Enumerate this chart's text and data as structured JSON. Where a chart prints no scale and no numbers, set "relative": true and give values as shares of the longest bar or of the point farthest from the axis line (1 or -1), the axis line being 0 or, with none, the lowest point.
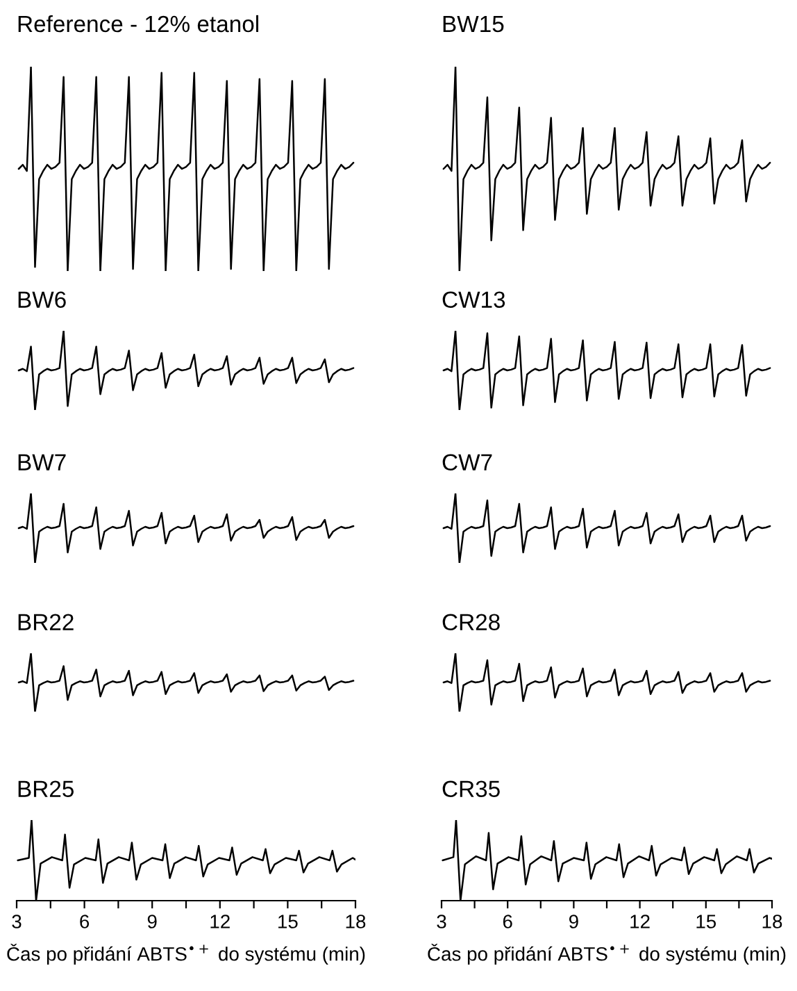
{
  "chart_data": [
    {
      "type": "line",
      "title": "Reference - 12% etanol",
      "color": "#000000",
      "relative": true,
      "tick_labels": false,
      "categories": [
        null,
        null,
        null,
        null,
        null,
        null,
        null,
        null,
        null,
        null,
        null,
        null,
        null,
        null,
        null,
        null,
        null,
        null,
        null,
        null,
        null,
        null,
        null,
        null,
        null,
        null,
        null,
        null,
        null,
        null,
        null,
        null,
        null,
        null,
        null,
        null,
        null,
        null,
        null,
        null,
        null,
        null,
        null,
        null,
        null,
        null,
        null,
        null,
        null,
        null,
        null,
        null,
        null,
        null,
        null,
        null,
        null,
        null,
        null,
        null,
        null,
        null,
        null,
        null,
        null,
        null,
        null,
        null,
        null,
        null,
        null,
        null,
        null,
        null,
        null,
        null,
        null,
        null,
        null,
        null,
        null,
        null,
        null
      ],
      "values": [
        0.5,
        0.52,
        0.49,
        1.0,
        0.02,
        0.45,
        0.49,
        0.52,
        0.5,
        0.51,
        0.53,
        0.95,
        0.0,
        0.45,
        0.49,
        0.52,
        0.5,
        0.51,
        0.53,
        0.95,
        0.0,
        0.45,
        0.49,
        0.52,
        0.5,
        0.51,
        0.53,
        0.95,
        0.01,
        0.45,
        0.49,
        0.52,
        0.5,
        0.51,
        0.53,
        0.97,
        0.0,
        0.45,
        0.49,
        0.52,
        0.5,
        0.51,
        0.53,
        0.97,
        0.0,
        0.45,
        0.49,
        0.52,
        0.5,
        0.51,
        0.53,
        0.93,
        0.01,
        0.45,
        0.49,
        0.52,
        0.5,
        0.51,
        0.53,
        0.94,
        0.0,
        0.45,
        0.49,
        0.52,
        0.5,
        0.51,
        0.53,
        0.93,
        0.0,
        0.45,
        0.49,
        0.52,
        0.5,
        0.51,
        0.53,
        0.94,
        0.01,
        0.45,
        0.49,
        0.52,
        0.5,
        0.51,
        0.53
      ]
    },
    {
      "type": "line",
      "title": "BW15",
      "color": "#000000",
      "relative": true,
      "tick_labels": false,
      "categories": [
        null,
        null,
        null,
        null,
        null,
        null,
        null,
        null,
        null,
        null,
        null,
        null,
        null,
        null,
        null,
        null,
        null,
        null,
        null,
        null,
        null,
        null,
        null,
        null,
        null,
        null,
        null,
        null,
        null,
        null,
        null,
        null,
        null,
        null,
        null,
        null,
        null,
        null,
        null,
        null,
        null,
        null,
        null,
        null,
        null,
        null,
        null,
        null,
        null,
        null,
        null,
        null,
        null,
        null,
        null,
        null,
        null,
        null,
        null,
        null,
        null,
        null,
        null,
        null,
        null,
        null,
        null,
        null,
        null,
        null,
        null,
        null,
        null,
        null,
        null,
        null,
        null,
        null,
        null,
        null,
        null,
        null,
        null
      ],
      "values": [
        0.5,
        0.52,
        0.49,
        1.0,
        0.0,
        0.45,
        0.49,
        0.52,
        0.5,
        0.51,
        0.53,
        0.85,
        0.15,
        0.45,
        0.49,
        0.52,
        0.5,
        0.51,
        0.53,
        0.8,
        0.2,
        0.45,
        0.49,
        0.52,
        0.5,
        0.51,
        0.53,
        0.75,
        0.25,
        0.45,
        0.49,
        0.52,
        0.5,
        0.51,
        0.53,
        0.7,
        0.28,
        0.45,
        0.49,
        0.52,
        0.5,
        0.51,
        0.53,
        0.7,
        0.3,
        0.45,
        0.49,
        0.52,
        0.5,
        0.51,
        0.53,
        0.68,
        0.32,
        0.45,
        0.49,
        0.52,
        0.5,
        0.51,
        0.53,
        0.66,
        0.32,
        0.45,
        0.49,
        0.52,
        0.5,
        0.51,
        0.53,
        0.65,
        0.33,
        0.45,
        0.49,
        0.52,
        0.5,
        0.51,
        0.53,
        0.64,
        0.34,
        0.45,
        0.49,
        0.52,
        0.5,
        0.51,
        0.53
      ]
    },
    {
      "type": "line",
      "title": "BW6",
      "color": "#000000",
      "relative": true,
      "tick_labels": false,
      "categories": [
        null,
        null,
        null,
        null,
        null,
        null,
        null,
        null,
        null,
        null,
        null,
        null,
        null,
        null,
        null,
        null,
        null,
        null,
        null,
        null,
        null,
        null,
        null,
        null,
        null,
        null,
        null,
        null,
        null,
        null,
        null,
        null,
        null,
        null,
        null,
        null,
        null,
        null,
        null,
        null,
        null,
        null,
        null,
        null,
        null,
        null,
        null,
        null,
        null,
        null,
        null,
        null,
        null,
        null,
        null,
        null,
        null,
        null,
        null,
        null,
        null,
        null,
        null,
        null,
        null,
        null,
        null,
        null,
        null,
        null,
        null,
        null,
        null,
        null,
        null,
        null,
        null,
        null,
        null,
        null,
        null,
        null,
        null
      ],
      "values": [
        0.5,
        0.52,
        0.49,
        0.8,
        0.0,
        0.45,
        0.49,
        0.52,
        0.5,
        0.51,
        0.53,
        1.0,
        0.05,
        0.45,
        0.49,
        0.52,
        0.5,
        0.51,
        0.53,
        0.8,
        0.2,
        0.45,
        0.49,
        0.52,
        0.5,
        0.51,
        0.53,
        0.75,
        0.25,
        0.45,
        0.49,
        0.52,
        0.5,
        0.51,
        0.53,
        0.72,
        0.28,
        0.45,
        0.49,
        0.52,
        0.5,
        0.51,
        0.53,
        0.7,
        0.3,
        0.45,
        0.49,
        0.52,
        0.5,
        0.51,
        0.53,
        0.68,
        0.32,
        0.45,
        0.49,
        0.52,
        0.5,
        0.51,
        0.53,
        0.66,
        0.33,
        0.45,
        0.49,
        0.52,
        0.5,
        0.51,
        0.53,
        0.66,
        0.34,
        0.45,
        0.49,
        0.52,
        0.5,
        0.51,
        0.53,
        0.64,
        0.35,
        0.45,
        0.49,
        0.52,
        0.5,
        0.51,
        0.53
      ]
    },
    {
      "type": "line",
      "title": "CW13",
      "color": "#000000",
      "relative": true,
      "tick_labels": false,
      "categories": [
        null,
        null,
        null,
        null,
        null,
        null,
        null,
        null,
        null,
        null,
        null,
        null,
        null,
        null,
        null,
        null,
        null,
        null,
        null,
        null,
        null,
        null,
        null,
        null,
        null,
        null,
        null,
        null,
        null,
        null,
        null,
        null,
        null,
        null,
        null,
        null,
        null,
        null,
        null,
        null,
        null,
        null,
        null,
        null,
        null,
        null,
        null,
        null,
        null,
        null,
        null,
        null,
        null,
        null,
        null,
        null,
        null,
        null,
        null,
        null,
        null,
        null,
        null,
        null,
        null,
        null,
        null,
        null,
        null,
        null,
        null,
        null,
        null,
        null,
        null,
        null,
        null,
        null,
        null,
        null,
        null,
        null,
        null
      ],
      "values": [
        0.5,
        0.52,
        0.49,
        1.0,
        0.0,
        0.45,
        0.49,
        0.52,
        0.5,
        0.51,
        0.53,
        0.97,
        0.03,
        0.45,
        0.49,
        0.52,
        0.5,
        0.51,
        0.53,
        0.93,
        0.06,
        0.45,
        0.49,
        0.52,
        0.5,
        0.51,
        0.53,
        0.9,
        0.1,
        0.45,
        0.49,
        0.52,
        0.5,
        0.51,
        0.53,
        0.88,
        0.12,
        0.45,
        0.49,
        0.52,
        0.5,
        0.51,
        0.53,
        0.86,
        0.14,
        0.45,
        0.49,
        0.52,
        0.5,
        0.51,
        0.53,
        0.85,
        0.15,
        0.45,
        0.49,
        0.52,
        0.5,
        0.51,
        0.53,
        0.83,
        0.16,
        0.45,
        0.49,
        0.52,
        0.5,
        0.51,
        0.53,
        0.83,
        0.17,
        0.45,
        0.49,
        0.52,
        0.5,
        0.51,
        0.53,
        0.82,
        0.18,
        0.45,
        0.49,
        0.52,
        0.5,
        0.51,
        0.53
      ]
    },
    {
      "type": "line",
      "title": "BW7",
      "color": "#000000",
      "relative": true,
      "tick_labels": false,
      "categories": [
        null,
        null,
        null,
        null,
        null,
        null,
        null,
        null,
        null,
        null,
        null,
        null,
        null,
        null,
        null,
        null,
        null,
        null,
        null,
        null,
        null,
        null,
        null,
        null,
        null,
        null,
        null,
        null,
        null,
        null,
        null,
        null,
        null,
        null,
        null,
        null,
        null,
        null,
        null,
        null,
        null,
        null,
        null,
        null,
        null,
        null,
        null,
        null,
        null,
        null,
        null,
        null,
        null,
        null,
        null,
        null,
        null,
        null,
        null,
        null,
        null,
        null,
        null,
        null,
        null,
        null,
        null,
        null,
        null,
        null,
        null,
        null,
        null,
        null,
        null,
        null,
        null,
        null,
        null,
        null,
        null,
        null,
        null
      ],
      "values": [
        0.5,
        0.52,
        0.49,
        1.0,
        0.0,
        0.45,
        0.49,
        0.52,
        0.5,
        0.51,
        0.53,
        0.85,
        0.15,
        0.45,
        0.49,
        0.52,
        0.5,
        0.51,
        0.53,
        0.8,
        0.2,
        0.45,
        0.49,
        0.52,
        0.5,
        0.51,
        0.53,
        0.75,
        0.25,
        0.45,
        0.49,
        0.52,
        0.5,
        0.51,
        0.53,
        0.72,
        0.28,
        0.45,
        0.49,
        0.52,
        0.5,
        0.51,
        0.53,
        0.68,
        0.3,
        0.45,
        0.49,
        0.52,
        0.5,
        0.51,
        0.53,
        0.7,
        0.32,
        0.45,
        0.49,
        0.52,
        0.5,
        0.51,
        0.53,
        0.62,
        0.36,
        0.45,
        0.49,
        0.52,
        0.5,
        0.51,
        0.53,
        0.66,
        0.33,
        0.45,
        0.49,
        0.52,
        0.5,
        0.51,
        0.53,
        0.62,
        0.36,
        0.45,
        0.49,
        0.52,
        0.5,
        0.51,
        0.53
      ]
    },
    {
      "type": "line",
      "title": "CW7",
      "color": "#000000",
      "relative": true,
      "tick_labels": false,
      "categories": [
        null,
        null,
        null,
        null,
        null,
        null,
        null,
        null,
        null,
        null,
        null,
        null,
        null,
        null,
        null,
        null,
        null,
        null,
        null,
        null,
        null,
        null,
        null,
        null,
        null,
        null,
        null,
        null,
        null,
        null,
        null,
        null,
        null,
        null,
        null,
        null,
        null,
        null,
        null,
        null,
        null,
        null,
        null,
        null,
        null,
        null,
        null,
        null,
        null,
        null,
        null,
        null,
        null,
        null,
        null,
        null,
        null,
        null,
        null,
        null,
        null,
        null,
        null,
        null,
        null,
        null,
        null,
        null,
        null,
        null,
        null,
        null,
        null,
        null,
        null,
        null,
        null,
        null,
        null,
        null,
        null,
        null,
        null
      ],
      "values": [
        0.5,
        0.52,
        0.49,
        1.0,
        0.0,
        0.45,
        0.49,
        0.52,
        0.5,
        0.51,
        0.53,
        0.9,
        0.1,
        0.45,
        0.49,
        0.52,
        0.5,
        0.51,
        0.53,
        0.85,
        0.15,
        0.45,
        0.49,
        0.52,
        0.5,
        0.51,
        0.53,
        0.8,
        0.2,
        0.45,
        0.49,
        0.52,
        0.5,
        0.51,
        0.53,
        0.78,
        0.22,
        0.45,
        0.49,
        0.52,
        0.5,
        0.51,
        0.53,
        0.75,
        0.25,
        0.45,
        0.49,
        0.52,
        0.5,
        0.51,
        0.53,
        0.72,
        0.28,
        0.45,
        0.49,
        0.52,
        0.5,
        0.51,
        0.53,
        0.7,
        0.3,
        0.45,
        0.49,
        0.52,
        0.5,
        0.51,
        0.53,
        0.68,
        0.3,
        0.45,
        0.49,
        0.52,
        0.5,
        0.51,
        0.53,
        0.68,
        0.32,
        0.45,
        0.49,
        0.52,
        0.5,
        0.51,
        0.53
      ]
    },
    {
      "type": "line",
      "title": "BR22",
      "color": "#000000",
      "relative": true,
      "tick_labels": false,
      "categories": [
        null,
        null,
        null,
        null,
        null,
        null,
        null,
        null,
        null,
        null,
        null,
        null,
        null,
        null,
        null,
        null,
        null,
        null,
        null,
        null,
        null,
        null,
        null,
        null,
        null,
        null,
        null,
        null,
        null,
        null,
        null,
        null,
        null,
        null,
        null,
        null,
        null,
        null,
        null,
        null,
        null,
        null,
        null,
        null,
        null,
        null,
        null,
        null,
        null,
        null,
        null,
        null,
        null,
        null,
        null,
        null,
        null,
        null,
        null,
        null,
        null,
        null,
        null,
        null,
        null,
        null,
        null,
        null,
        null,
        null,
        null,
        null,
        null,
        null,
        null,
        null,
        null,
        null,
        null,
        null,
        null,
        null,
        null
      ],
      "values": [
        0.5,
        0.52,
        0.49,
        1.0,
        0.0,
        0.45,
        0.49,
        0.52,
        0.5,
        0.51,
        0.53,
        0.78,
        0.2,
        0.45,
        0.49,
        0.52,
        0.5,
        0.51,
        0.53,
        0.72,
        0.26,
        0.45,
        0.49,
        0.52,
        0.5,
        0.51,
        0.53,
        0.7,
        0.28,
        0.45,
        0.49,
        0.52,
        0.5,
        0.51,
        0.53,
        0.68,
        0.3,
        0.45,
        0.49,
        0.52,
        0.5,
        0.51,
        0.53,
        0.66,
        0.32,
        0.45,
        0.49,
        0.52,
        0.5,
        0.51,
        0.53,
        0.64,
        0.34,
        0.45,
        0.49,
        0.52,
        0.5,
        0.51,
        0.53,
        0.62,
        0.35,
        0.45,
        0.49,
        0.52,
        0.5,
        0.51,
        0.53,
        0.62,
        0.36,
        0.45,
        0.49,
        0.52,
        0.5,
        0.51,
        0.53,
        0.6,
        0.37,
        0.45,
        0.49,
        0.52,
        0.5,
        0.51,
        0.53
      ]
    },
    {
      "type": "line",
      "title": "CR28",
      "color": "#000000",
      "relative": true,
      "tick_labels": false,
      "categories": [
        null,
        null,
        null,
        null,
        null,
        null,
        null,
        null,
        null,
        null,
        null,
        null,
        null,
        null,
        null,
        null,
        null,
        null,
        null,
        null,
        null,
        null,
        null,
        null,
        null,
        null,
        null,
        null,
        null,
        null,
        null,
        null,
        null,
        null,
        null,
        null,
        null,
        null,
        null,
        null,
        null,
        null,
        null,
        null,
        null,
        null,
        null,
        null,
        null,
        null,
        null,
        null,
        null,
        null,
        null,
        null,
        null,
        null,
        null,
        null,
        null,
        null,
        null,
        null,
        null,
        null,
        null,
        null,
        null,
        null,
        null,
        null,
        null,
        null,
        null,
        null,
        null,
        null,
        null,
        null,
        null,
        null,
        null
      ],
      "values": [
        0.5,
        0.52,
        0.49,
        1.0,
        0.0,
        0.45,
        0.49,
        0.52,
        0.5,
        0.51,
        0.53,
        0.88,
        0.12,
        0.45,
        0.49,
        0.52,
        0.5,
        0.51,
        0.53,
        0.82,
        0.18,
        0.45,
        0.49,
        0.52,
        0.5,
        0.51,
        0.53,
        0.76,
        0.24,
        0.45,
        0.49,
        0.52,
        0.5,
        0.51,
        0.53,
        0.74,
        0.26,
        0.45,
        0.49,
        0.52,
        0.5,
        0.51,
        0.53,
        0.72,
        0.28,
        0.45,
        0.49,
        0.52,
        0.5,
        0.51,
        0.53,
        0.7,
        0.3,
        0.45,
        0.49,
        0.52,
        0.5,
        0.51,
        0.53,
        0.68,
        0.32,
        0.45,
        0.49,
        0.52,
        0.5,
        0.51,
        0.53,
        0.66,
        0.34,
        0.45,
        0.49,
        0.52,
        0.5,
        0.51,
        0.53,
        0.66,
        0.34,
        0.45,
        0.49,
        0.52,
        0.5,
        0.51,
        0.53
      ]
    },
    {
      "type": "line",
      "title": "BR25",
      "color": "#000000",
      "relative": true,
      "xlabel": "Čas po přidání ABTS$^{•+}$ do systému (min)",
      "xlim": [
        3,
        18
      ],
      "xticks": [
        3,
        {
          "value": 4.5,
          "label": null
        },
        6,
        {
          "value": 7.5,
          "label": null
        },
        9,
        {
          "value": 10.5,
          "label": null
        },
        12,
        {
          "value": 13.5,
          "label": null
        },
        15,
        {
          "value": 16.5,
          "label": null
        },
        18
      ],
      "x": [
        3.05,
        3.54,
        3.66,
        3.86,
        4.06,
        4.56,
        5.02,
        5.14,
        5.34,
        5.54,
        6.04,
        6.5,
        6.62,
        6.82,
        7.02,
        7.52,
        7.98,
        8.1,
        8.3,
        8.5,
        9.0,
        9.46,
        9.58,
        9.78,
        9.98,
        10.48,
        10.94,
        11.06,
        11.26,
        11.46,
        11.96,
        12.42,
        12.54,
        12.74,
        12.94,
        13.44,
        13.9,
        14.02,
        14.22,
        14.42,
        14.92,
        15.38,
        15.5,
        15.7,
        15.9,
        16.4,
        16.86,
        16.98,
        17.18,
        17.38,
        17.88,
        18.0
      ],
      "values": [
        0.5,
        0.53,
        1.0,
        0.0,
        0.46,
        0.54,
        0.5,
        0.82,
        0.16,
        0.45,
        0.53,
        0.5,
        0.76,
        0.22,
        0.46,
        0.54,
        0.5,
        0.72,
        0.26,
        0.45,
        0.53,
        0.5,
        0.7,
        0.28,
        0.46,
        0.54,
        0.5,
        0.68,
        0.3,
        0.45,
        0.53,
        0.5,
        0.66,
        0.32,
        0.46,
        0.54,
        0.5,
        0.64,
        0.34,
        0.45,
        0.53,
        0.5,
        0.62,
        0.35,
        0.46,
        0.54,
        0.5,
        0.62,
        0.36,
        0.45,
        0.53,
        0.51
      ]
    },
    {
      "type": "line",
      "title": "CR35",
      "color": "#000000",
      "relative": true,
      "xlabel": "Čas po přidání ABTS$^{•+}$ do systému (min)",
      "xlim": [
        3,
        18
      ],
      "xticks": [
        3,
        {
          "value": 4.5,
          "label": null
        },
        6,
        {
          "value": 7.5,
          "label": null
        },
        9,
        {
          "value": 10.5,
          "label": null
        },
        12,
        {
          "value": 13.5,
          "label": null
        },
        15,
        {
          "value": 16.5,
          "label": null
        },
        18
      ],
      "x": [
        3.05,
        3.54,
        3.66,
        3.86,
        4.06,
        4.56,
        5.02,
        5.14,
        5.34,
        5.54,
        6.04,
        6.5,
        6.62,
        6.82,
        7.02,
        7.52,
        7.98,
        8.1,
        8.3,
        8.5,
        9.0,
        9.46,
        9.58,
        9.78,
        9.98,
        10.48,
        10.94,
        11.06,
        11.26,
        11.46,
        11.96,
        12.42,
        12.54,
        12.74,
        12.94,
        13.44,
        13.9,
        14.02,
        14.22,
        14.42,
        14.92,
        15.38,
        15.5,
        15.7,
        15.9,
        16.4,
        16.86,
        16.98,
        17.18,
        17.38,
        17.88,
        18.0
      ],
      "values": [
        0.5,
        0.54,
        1.0,
        0.0,
        0.45,
        0.55,
        0.5,
        0.84,
        0.14,
        0.46,
        0.54,
        0.5,
        0.8,
        0.2,
        0.45,
        0.55,
        0.5,
        0.74,
        0.24,
        0.46,
        0.53,
        0.5,
        0.72,
        0.27,
        0.45,
        0.54,
        0.5,
        0.7,
        0.29,
        0.46,
        0.55,
        0.5,
        0.68,
        0.31,
        0.45,
        0.53,
        0.5,
        0.66,
        0.33,
        0.46,
        0.54,
        0.5,
        0.64,
        0.34,
        0.45,
        0.55,
        0.5,
        0.64,
        0.35,
        0.46,
        0.53,
        0.52
      ]
    }
  ]
}
